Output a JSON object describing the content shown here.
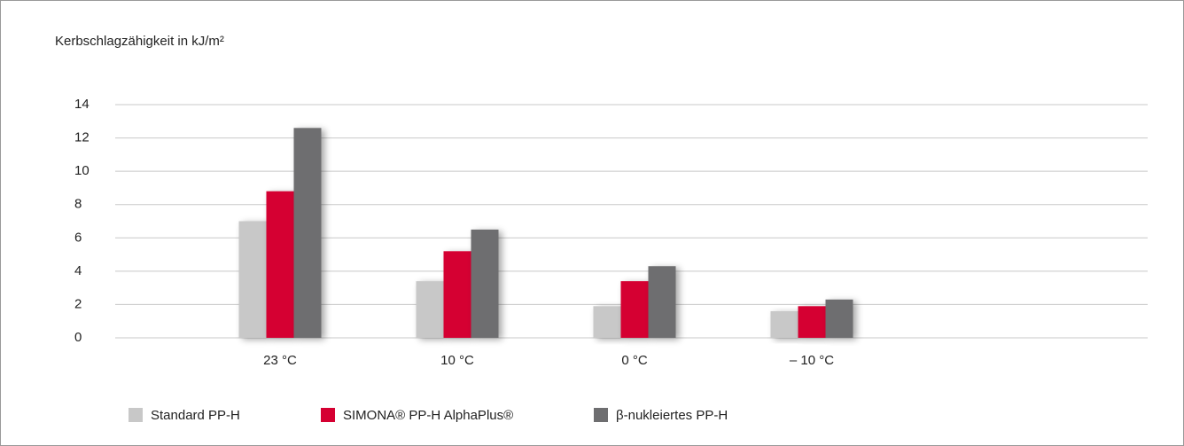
{
  "chart_data": {
    "type": "bar",
    "ylabel": "Kerbschlagzähigkeit in kJ/m²",
    "categories": [
      "23 °C",
      "10 °C",
      "0 °C",
      "– 10 °C"
    ],
    "series": [
      {
        "name": "Standard PP-H",
        "color": "#c8c8c8",
        "values": [
          7.0,
          3.4,
          1.9,
          1.6
        ]
      },
      {
        "name": "SIMONA® PP-H AlphaPlus®",
        "color": "#d50032",
        "values": [
          8.8,
          5.2,
          3.4,
          1.9
        ]
      },
      {
        "name": "β-nukleiertes PP-H",
        "color": "#6e6e70",
        "values": [
          12.6,
          6.5,
          4.3,
          2.3
        ]
      }
    ],
    "ylim": [
      0,
      14
    ],
    "yticks": [
      0,
      2,
      4,
      6,
      8,
      10,
      12,
      14
    ],
    "grid": true
  }
}
